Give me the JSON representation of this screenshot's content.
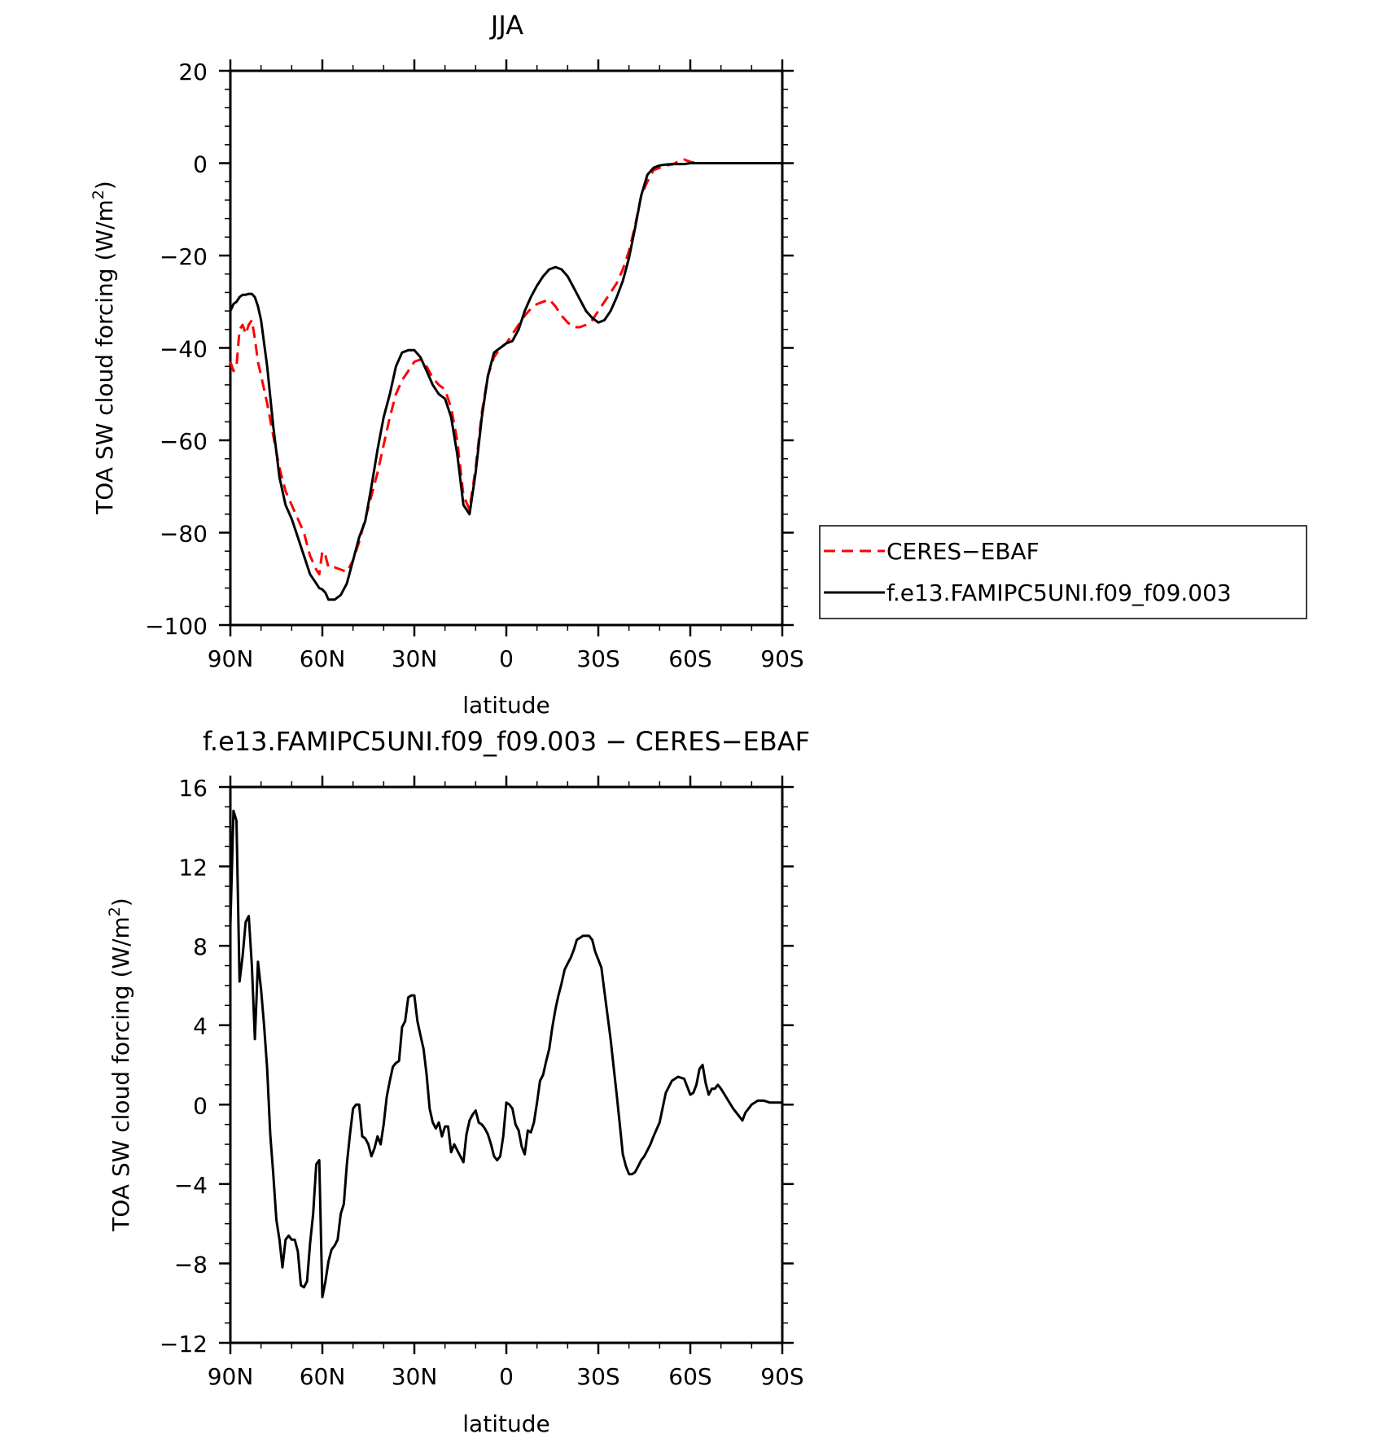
{
  "chart_data": [
    {
      "type": "line",
      "title": "JJA",
      "xlabel": "latitude",
      "ylabel": "TOA SW cloud forcing (W/m",
      "ylabel_sup": "2",
      "ylabel_close": ")",
      "xlim": [
        90,
        -90
      ],
      "ylim": [
        -100,
        20
      ],
      "x_ticks": [
        90,
        60,
        30,
        0,
        -30,
        -60,
        -90
      ],
      "x_tick_labels": [
        "90N",
        "60N",
        "30N",
        "0",
        "30S",
        "60S",
        "90S"
      ],
      "y_ticks": [
        -100,
        -80,
        -60,
        -40,
        -20,
        0,
        20
      ],
      "y_tick_labels": [
        "−100",
        "−80",
        "−60",
        "−40",
        "−20",
        "0",
        "20"
      ],
      "grid": false,
      "legend_position": "right",
      "series": [
        {
          "name": "CERES−EBAF",
          "color": "#ff0000",
          "dash": "dashed",
          "x": [
            90,
            89,
            88,
            87,
            86,
            85,
            84,
            83,
            82,
            81,
            80,
            78,
            76,
            74,
            72,
            70,
            68,
            66,
            64,
            62,
            61,
            60,
            59,
            58,
            56,
            54,
            52,
            50,
            48,
            46,
            44,
            42,
            40,
            38,
            36,
            34,
            32,
            30,
            28,
            26,
            24,
            22,
            20,
            18,
            16,
            14,
            12,
            10,
            8,
            6,
            4,
            2,
            0,
            -2,
            -4,
            -6,
            -8,
            -10,
            -12,
            -14,
            -16,
            -18,
            -20,
            -22,
            -24,
            -26,
            -28,
            -30,
            -32,
            -34,
            -36,
            -38,
            -40,
            -42,
            -44,
            -46,
            -48,
            -50,
            -52,
            -54,
            -56,
            -58,
            -60,
            -62,
            -64,
            -66,
            -68,
            -70,
            -72,
            -74,
            -76,
            -78,
            -80,
            -82,
            -84,
            -86,
            -88,
            -90
          ],
          "values": [
            -43,
            -45,
            -44,
            -36,
            -35,
            -37,
            -35,
            -34,
            -38,
            -43,
            -46,
            -52,
            -59,
            -66,
            -71,
            -74,
            -77,
            -80,
            -85,
            -88,
            -89,
            -84,
            -85,
            -87.5,
            -87.5,
            -88,
            -88.5,
            -86,
            -82,
            -77,
            -72,
            -67,
            -61,
            -55,
            -50,
            -47,
            -45,
            -43,
            -42.5,
            -44,
            -46.5,
            -48,
            -49,
            -53,
            -60,
            -72,
            -75,
            -66,
            -54,
            -46,
            -42,
            -40,
            -39,
            -37,
            -35,
            -33,
            -31.5,
            -30.5,
            -30,
            -29.5,
            -31,
            -33,
            -34.5,
            -35.5,
            -35.5,
            -35,
            -34,
            -32,
            -30,
            -28,
            -26,
            -23,
            -19,
            -13.5,
            -7,
            -4,
            -1.5,
            -1,
            -0.5,
            -0.3,
            0.3,
            0.8,
            0.3,
            0,
            0,
            0,
            0,
            0,
            0,
            0,
            0,
            0,
            0,
            0,
            0,
            0,
            0,
            0
          ]
        },
        {
          "name": "f.e13.FAMIPC5UNI.f09_f09.003",
          "color": "#000000",
          "dash": "solid",
          "x": [
            90,
            89,
            88,
            87,
            86,
            85,
            84,
            83,
            82,
            81,
            80,
            78,
            76,
            74,
            72,
            70,
            68,
            66,
            64,
            62,
            61,
            60,
            59,
            58,
            56,
            54,
            52,
            50,
            48,
            46,
            44,
            42,
            40,
            38,
            36,
            34,
            32,
            30,
            28,
            26,
            24,
            22,
            20,
            18,
            16,
            14,
            12,
            10,
            8,
            6,
            4,
            2,
            0,
            -2,
            -4,
            -6,
            -8,
            -10,
            -12,
            -14,
            -16,
            -18,
            -20,
            -22,
            -24,
            -26,
            -28,
            -30,
            -32,
            -34,
            -36,
            -38,
            -40,
            -42,
            -44,
            -46,
            -48,
            -50,
            -52,
            -54,
            -56,
            -58,
            -60,
            -62,
            -64,
            -66,
            -68,
            -70,
            -72,
            -74,
            -76,
            -78,
            -80,
            -82,
            -84,
            -86,
            -88,
            -90
          ],
          "values": [
            -32,
            -30.5,
            -30,
            -29,
            -28.5,
            -28.5,
            -28.3,
            -28.3,
            -29,
            -31,
            -34,
            -44,
            -57,
            -68,
            -74,
            -77,
            -81,
            -85,
            -89,
            -91,
            -92,
            -92.3,
            -93,
            -94.5,
            -94.5,
            -93.5,
            -91,
            -86,
            -81,
            -77.5,
            -70,
            -62,
            -55,
            -50,
            -44,
            -41,
            -40.5,
            -40.5,
            -42,
            -45,
            -48,
            -50,
            -51,
            -55,
            -63,
            -74,
            -76,
            -67,
            -55,
            -46,
            -41,
            -40,
            -39,
            -38.5,
            -36,
            -32,
            -29,
            -26.5,
            -24.5,
            -23,
            -22.5,
            -23,
            -24.5,
            -27,
            -29.5,
            -32,
            -33.5,
            -34.5,
            -34,
            -32,
            -29,
            -25.5,
            -20.5,
            -14,
            -7,
            -2.5,
            -1,
            -0.5,
            -0.3,
            -0.2,
            -0.2,
            -0.2,
            0,
            0,
            0,
            0,
            0,
            0,
            0,
            0,
            0,
            0,
            0,
            0,
            0,
            0,
            0,
            0
          ]
        }
      ]
    },
    {
      "type": "line",
      "title": "f.e13.FAMIPC5UNI.f09_f09.003 − CERES−EBAF",
      "xlabel": "latitude",
      "ylabel": "TOA SW cloud forcing (W/m",
      "ylabel_sup": "2",
      "ylabel_close": ")",
      "xlim": [
        90,
        -90
      ],
      "ylim": [
        -12,
        16
      ],
      "x_ticks": [
        90,
        60,
        30,
        0,
        -30,
        -60,
        -90
      ],
      "x_tick_labels": [
        "90N",
        "60N",
        "30N",
        "0",
        "30S",
        "60S",
        "90S"
      ],
      "y_ticks": [
        -12,
        -8,
        -4,
        0,
        4,
        8,
        12,
        16
      ],
      "y_tick_labels": [
        "−12",
        "−8",
        "−4",
        "0",
        "4",
        "8",
        "12",
        "16"
      ],
      "grid": false,
      "series": [
        {
          "color": "#000000",
          "dash": "solid",
          "x": [
            90,
            89,
            88,
            87,
            86,
            85,
            84,
            83,
            82,
            81,
            80,
            79,
            78,
            77,
            76,
            75,
            74,
            73,
            72,
            71,
            70,
            69,
            68,
            67,
            66,
            65,
            64,
            63,
            62,
            61,
            60,
            59,
            58,
            57,
            56,
            55,
            54,
            53,
            52,
            51,
            50,
            49,
            48,
            47,
            46,
            45,
            44,
            43,
            42,
            41,
            40,
            39,
            38,
            37,
            36,
            35,
            34,
            33,
            32,
            31,
            30,
            29,
            28,
            27,
            26,
            25,
            24,
            23,
            22,
            21,
            20,
            19,
            18,
            17,
            16,
            15,
            14,
            13,
            12,
            11,
            10,
            9,
            8,
            7,
            6,
            5,
            4,
            3,
            2,
            1,
            0,
            -1,
            -2,
            -3,
            -4,
            -5,
            -6,
            -7,
            -8,
            -9,
            -10,
            -11,
            -12,
            -13,
            -14,
            -15,
            -16,
            -17,
            -18,
            -19,
            -20,
            -21,
            -22,
            -23,
            -24,
            -25,
            -26,
            -27,
            -28,
            -29,
            -30,
            -31,
            -32,
            -33,
            -34,
            -35,
            -36,
            -37,
            -38,
            -39,
            -40,
            -41,
            -42,
            -43,
            -44,
            -45,
            -46,
            -47,
            -48,
            -50,
            -52,
            -54,
            -56,
            -58,
            -60,
            -61,
            -62,
            -63,
            -64,
            -65,
            -66,
            -67,
            -68,
            -69,
            -70,
            -72,
            -74,
            -76,
            -77,
            -78,
            -79,
            -80,
            -82,
            -84,
            -86,
            -88,
            -90
          ],
          "values": [
            9,
            14.8,
            14.3,
            6.2,
            7.5,
            9.2,
            9.5,
            7,
            3.3,
            7.2,
            5.8,
            4,
            1.8,
            -1.5,
            -3.5,
            -5.8,
            -6.8,
            -8.2,
            -6.8,
            -6.6,
            -6.8,
            -6.8,
            -7.4,
            -9.1,
            -9.2,
            -8.9,
            -7,
            -5.5,
            -3,
            -2.8,
            -9.7,
            -8.9,
            -7.9,
            -7.3,
            -7.1,
            -6.8,
            -5.5,
            -5,
            -3,
            -1.5,
            -0.2,
            0,
            0,
            -1.6,
            -1.7,
            -2,
            -2.6,
            -2.2,
            -1.6,
            -2,
            -1,
            0.4,
            1.2,
            1.9,
            2.1,
            2.2,
            3.9,
            4.2,
            5.4,
            5.5,
            5.5,
            4.2,
            3.5,
            2.8,
            1.5,
            -0.2,
            -0.9,
            -1.2,
            -0.9,
            -1.6,
            -1.1,
            -1.1,
            -2.4,
            -2,
            -2.3,
            -2.6,
            -2.9,
            -1.5,
            -0.8,
            -0.5,
            -0.3,
            -0.9,
            -1,
            -1.2,
            -1.5,
            -2,
            -2.6,
            -2.8,
            -2.6,
            -1.6,
            0.1,
            0,
            -0.2,
            -1,
            -1.3,
            -2.1,
            -2.5,
            -1.3,
            -1.4,
            -0.9,
            0.1,
            1.2,
            1.5,
            2.2,
            2.8,
            3.9,
            4.8,
            5.5,
            6.1,
            6.8,
            7.1,
            7.4,
            7.8,
            8.3,
            8.4,
            8.5,
            8.5,
            8.5,
            8.3,
            7.7,
            7.3,
            6.9,
            5.7,
            4.5,
            3.3,
            1.9,
            0.5,
            -1,
            -2.5,
            -3.1,
            -3.5,
            -3.5,
            -3.4,
            -3.1,
            -2.8,
            -2.6,
            -2.3,
            -2,
            -1.6,
            -0.9,
            0.6,
            1.2,
            1.4,
            1.3,
            0.5,
            0.6,
            1,
            1.8,
            2,
            1.1,
            0.5,
            0.8,
            0.8,
            1,
            0.8,
            0.3,
            -0.2,
            -0.6,
            -0.8,
            -0.4,
            -0.2,
            0,
            0.2,
            0.2,
            0.1,
            0.1,
            0.1
          ]
        }
      ]
    }
  ]
}
